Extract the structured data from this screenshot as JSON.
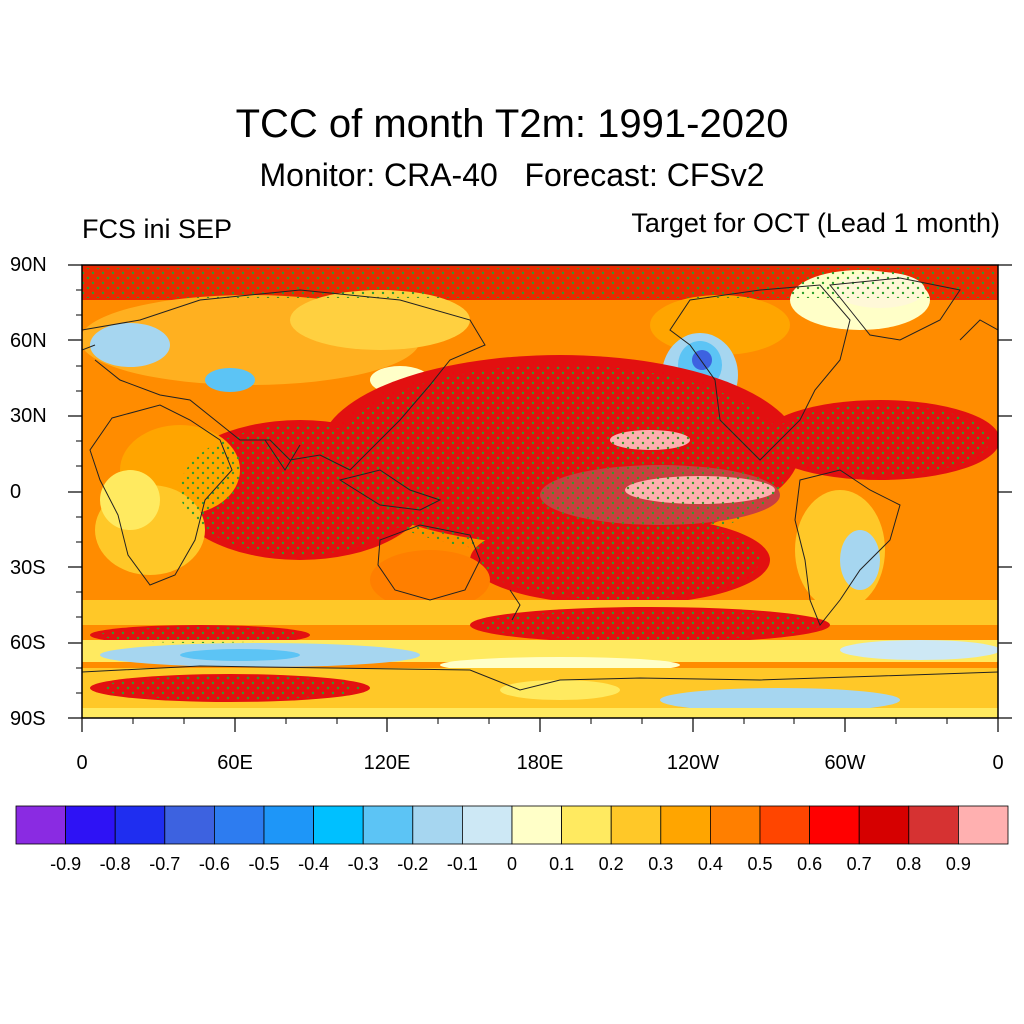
{
  "title": "TCC of month T2m: 1991-2020",
  "subtitle": "Monitor: CRA-40   Forecast: CFSv2",
  "left_note": "FCS ini SEP",
  "right_note": "Target for OCT (Lead 1 month)",
  "lat_labels": [
    "90N",
    "60N",
    "30N",
    "0",
    "30S",
    "60S",
    "90S"
  ],
  "lon_labels": [
    "0",
    "60E",
    "120E",
    "180E",
    "120W",
    "60W",
    "0"
  ],
  "colorbar": {
    "labels": [
      "-0.9",
      "-0.8",
      "-0.7",
      "-0.6",
      "-0.5",
      "-0.4",
      "-0.3",
      "-0.2",
      "-0.1",
      "0",
      "0.1",
      "0.2",
      "0.3",
      "0.4",
      "0.5",
      "0.6",
      "0.7",
      "0.8",
      "0.9"
    ],
    "colors": [
      "#8a2be2",
      "#2e12f5",
      "#1f2ef0",
      "#3d62e0",
      "#2d7cf0",
      "#1e96f8",
      "#00c0ff",
      "#5cc4f5",
      "#a6d6f0",
      "#cde8f5",
      "#ffffc8",
      "#ffea60",
      "#ffc828",
      "#ffa500",
      "#ff7f00",
      "#ff4500",
      "#ff0000",
      "#d60000",
      "#d63232",
      "#ffb0b0"
    ]
  }
}
